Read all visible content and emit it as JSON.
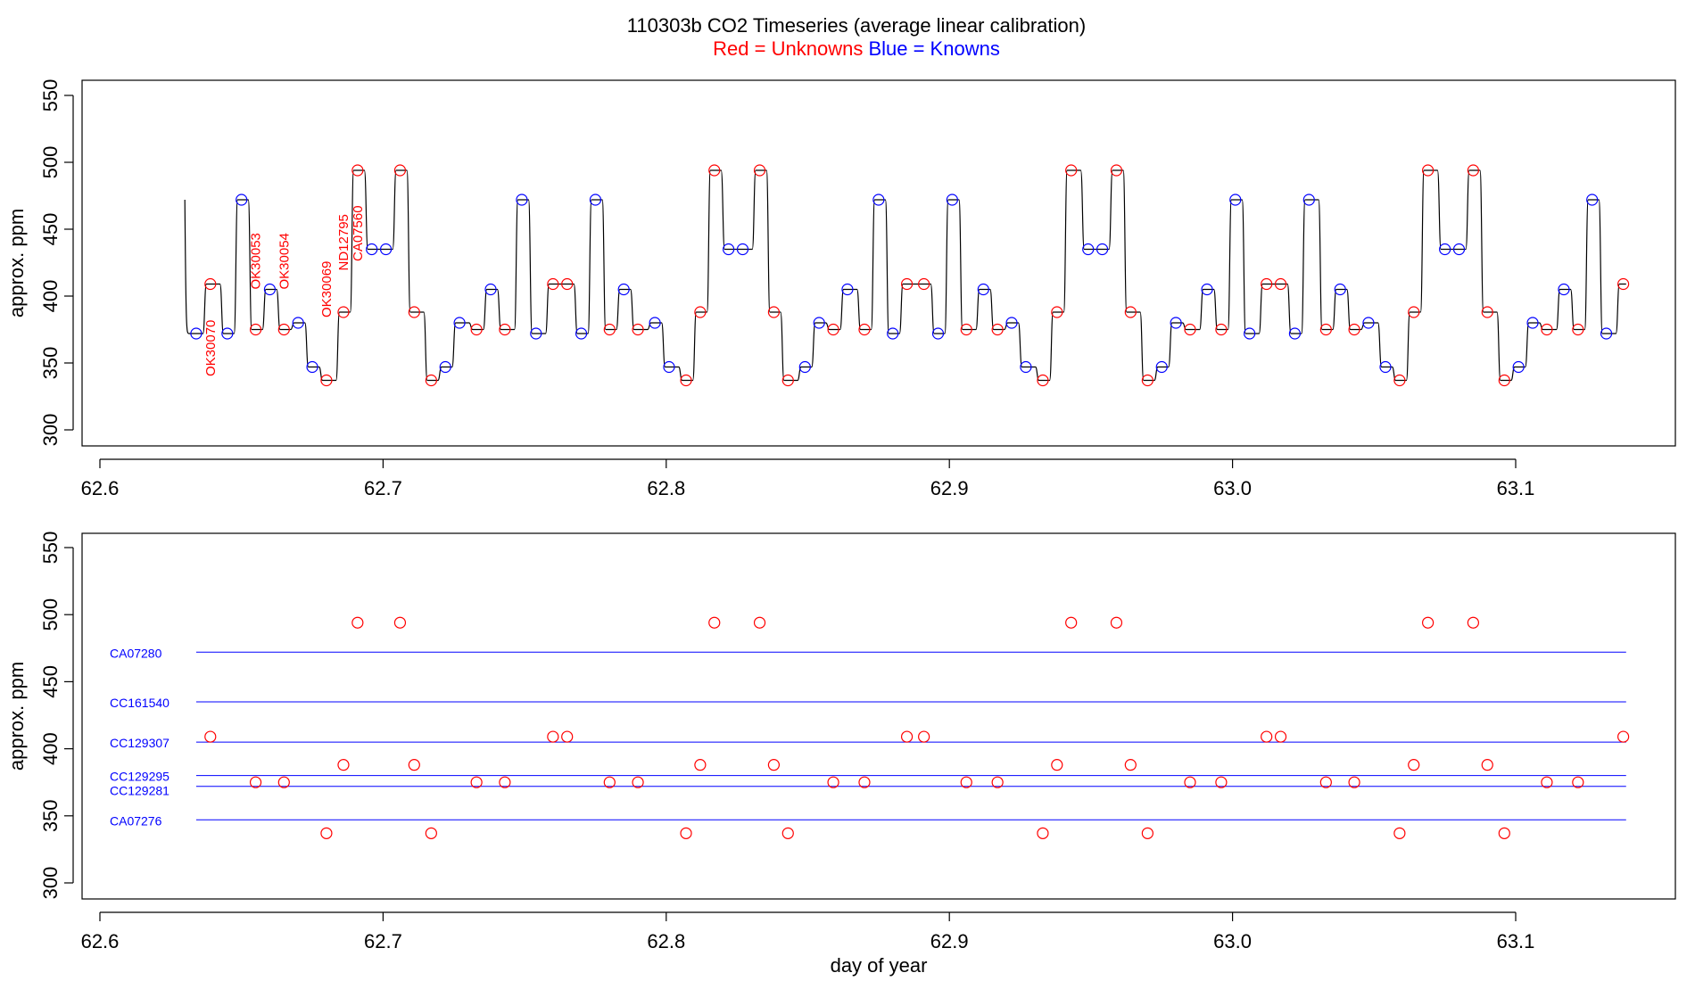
{
  "title": "110303b   CO2 Timeseries (average linear calibration)",
  "subtitle": {
    "red": "Red = Unknowns",
    "blue": "Blue = Knowns"
  },
  "colors": {
    "unknown": "#ff0000",
    "known": "#0000ff",
    "trace": "#000000",
    "ref_line": "#0000ff",
    "axis": "#000000"
  },
  "chart_data": [
    {
      "type": "line",
      "name": "top-panel",
      "xlim": [
        62.6,
        63.16
      ],
      "ylim": [
        300,
        550
      ],
      "xticks": [
        62.6,
        62.7,
        62.8,
        62.9,
        63.0,
        63.1
      ],
      "xtick_labels": [
        "62.6",
        "62.7",
        "62.8",
        "62.9",
        "63.0",
        "63.1"
      ],
      "yticks": [
        300,
        350,
        400,
        450,
        500,
        550
      ],
      "ytick_labels": [
        "300",
        "350",
        "400",
        "450",
        "500",
        "550"
      ],
      "xlabel": "",
      "ylabel": "approx. ppm",
      "trace_start": [
        62.63,
        472
      ],
      "trace_end_x": 63.139,
      "steps": [
        [
          62.634,
          372,
          "k"
        ],
        [
          62.639,
          409,
          "u"
        ],
        [
          62.645,
          372,
          "k"
        ],
        [
          62.65,
          472,
          "k"
        ],
        [
          62.655,
          375,
          "u"
        ],
        [
          62.66,
          405,
          "k"
        ],
        [
          62.665,
          375,
          "u"
        ],
        [
          62.67,
          380,
          "k"
        ],
        [
          62.675,
          347,
          "k"
        ],
        [
          62.68,
          337,
          "u"
        ],
        [
          62.686,
          388,
          "u"
        ],
        [
          62.691,
          494,
          "u"
        ],
        [
          62.696,
          435,
          "k"
        ],
        [
          62.701,
          435,
          "k"
        ],
        [
          62.706,
          494,
          "u"
        ],
        [
          62.711,
          388,
          "u"
        ],
        [
          62.717,
          337,
          "u"
        ],
        [
          62.722,
          347,
          "k"
        ],
        [
          62.727,
          380,
          "k"
        ],
        [
          62.733,
          375,
          "u"
        ],
        [
          62.738,
          405,
          "k"
        ],
        [
          62.743,
          375,
          "u"
        ],
        [
          62.749,
          472,
          "k"
        ],
        [
          62.754,
          372,
          "k"
        ],
        [
          62.76,
          409,
          "u"
        ],
        [
          62.765,
          409,
          "u"
        ],
        [
          62.77,
          372,
          "k"
        ],
        [
          62.775,
          472,
          "k"
        ],
        [
          62.78,
          375,
          "u"
        ],
        [
          62.785,
          405,
          "k"
        ],
        [
          62.79,
          375,
          "u"
        ],
        [
          62.796,
          380,
          "k"
        ],
        [
          62.801,
          347,
          "k"
        ],
        [
          62.807,
          337,
          "u"
        ],
        [
          62.812,
          388,
          "u"
        ],
        [
          62.817,
          494,
          "u"
        ],
        [
          62.822,
          435,
          "k"
        ],
        [
          62.827,
          435,
          "k"
        ],
        [
          62.833,
          494,
          "u"
        ],
        [
          62.838,
          388,
          "u"
        ],
        [
          62.843,
          337,
          "u"
        ],
        [
          62.849,
          347,
          "k"
        ],
        [
          62.854,
          380,
          "k"
        ],
        [
          62.859,
          375,
          "u"
        ],
        [
          62.864,
          405,
          "k"
        ],
        [
          62.87,
          375,
          "u"
        ],
        [
          62.875,
          472,
          "k"
        ],
        [
          62.88,
          372,
          "k"
        ],
        [
          62.885,
          409,
          "u"
        ],
        [
          62.891,
          409,
          "u"
        ],
        [
          62.896,
          372,
          "k"
        ],
        [
          62.901,
          472,
          "k"
        ],
        [
          62.906,
          375,
          "u"
        ],
        [
          62.912,
          405,
          "k"
        ],
        [
          62.917,
          375,
          "u"
        ],
        [
          62.922,
          380,
          "k"
        ],
        [
          62.927,
          347,
          "k"
        ],
        [
          62.933,
          337,
          "u"
        ],
        [
          62.938,
          388,
          "u"
        ],
        [
          62.943,
          494,
          "u"
        ],
        [
          62.949,
          435,
          "k"
        ],
        [
          62.954,
          435,
          "k"
        ],
        [
          62.959,
          494,
          "u"
        ],
        [
          62.964,
          388,
          "u"
        ],
        [
          62.97,
          337,
          "u"
        ],
        [
          62.975,
          347,
          "k"
        ],
        [
          62.98,
          380,
          "k"
        ],
        [
          62.985,
          375,
          "u"
        ],
        [
          62.991,
          405,
          "k"
        ],
        [
          62.996,
          375,
          "u"
        ],
        [
          63.001,
          472,
          "k"
        ],
        [
          63.006,
          372,
          "k"
        ],
        [
          63.012,
          409,
          "u"
        ],
        [
          63.017,
          409,
          "u"
        ],
        [
          63.022,
          372,
          "k"
        ],
        [
          63.027,
          472,
          "k"
        ],
        [
          63.033,
          375,
          "u"
        ],
        [
          63.038,
          405,
          "k"
        ],
        [
          63.043,
          375,
          "u"
        ],
        [
          63.048,
          380,
          "k"
        ],
        [
          63.054,
          347,
          "k"
        ],
        [
          63.059,
          337,
          "u"
        ],
        [
          63.064,
          388,
          "u"
        ],
        [
          63.069,
          494,
          "u"
        ],
        [
          63.075,
          435,
          "k"
        ],
        [
          63.08,
          435,
          "k"
        ],
        [
          63.085,
          494,
          "u"
        ],
        [
          63.09,
          388,
          "u"
        ],
        [
          63.096,
          337,
          "u"
        ],
        [
          63.101,
          347,
          "k"
        ],
        [
          63.106,
          380,
          "k"
        ],
        [
          63.111,
          375,
          "u"
        ],
        [
          63.117,
          405,
          "k"
        ],
        [
          63.122,
          375,
          "u"
        ],
        [
          63.127,
          472,
          "k"
        ],
        [
          63.132,
          372,
          "k"
        ],
        [
          63.138,
          409,
          "u"
        ]
      ],
      "sample_labels": [
        {
          "text": "OK30070",
          "x": 62.639,
          "y": 340
        },
        {
          "text": "OK30053",
          "x": 62.655,
          "y": 405
        },
        {
          "text": "OK30054",
          "x": 62.665,
          "y": 405
        },
        {
          "text": "OK30069",
          "x": 62.68,
          "y": 384
        },
        {
          "text": "ND12795",
          "x": 62.686,
          "y": 419
        },
        {
          "text": "CA07560",
          "x": 62.691,
          "y": 426
        }
      ]
    },
    {
      "type": "scatter",
      "name": "bottom-panel",
      "xlim": [
        62.6,
        63.16
      ],
      "ylim": [
        300,
        550
      ],
      "xticks": [
        62.6,
        62.7,
        62.8,
        62.9,
        63.0,
        63.1
      ],
      "xtick_labels": [
        "62.6",
        "62.7",
        "62.8",
        "62.9",
        "63.0",
        "63.1"
      ],
      "yticks": [
        300,
        350,
        400,
        450,
        500,
        550
      ],
      "ytick_labels": [
        "300",
        "350",
        "400",
        "450",
        "500",
        "550"
      ],
      "xlabel": "day of year",
      "ylabel": "approx. ppm",
      "reference_lines": [
        {
          "name": "CA07280",
          "value": 472
        },
        {
          "name": "CC161540",
          "value": 435
        },
        {
          "name": "CC129307",
          "value": 405
        },
        {
          "name": "CC129295",
          "value": 380
        },
        {
          "name": "CC129281",
          "value": 372
        },
        {
          "name": "CA07276",
          "value": 347
        }
      ],
      "reference_x_range": [
        62.634,
        63.139
      ],
      "unknowns": {
        "x": [
          62.639,
          62.655,
          62.665,
          62.68,
          62.686,
          62.691,
          62.706,
          62.711,
          62.717,
          62.733,
          62.743,
          62.76,
          62.765,
          62.78,
          62.79,
          62.807,
          62.812,
          62.817,
          62.833,
          62.838,
          62.843,
          62.859,
          62.87,
          62.885,
          62.891,
          62.906,
          62.917,
          62.933,
          62.938,
          62.943,
          62.959,
          62.964,
          62.97,
          62.985,
          62.996,
          63.012,
          63.017,
          63.033,
          63.043,
          63.059,
          63.064,
          63.069,
          63.085,
          63.09,
          63.096,
          63.111,
          63.122,
          63.138
        ],
        "y": [
          409,
          375,
          375,
          337,
          388,
          494,
          494,
          388,
          337,
          375,
          375,
          409,
          409,
          375,
          375,
          337,
          388,
          494,
          494,
          388,
          337,
          375,
          375,
          409,
          409,
          375,
          375,
          337,
          388,
          494,
          494,
          388,
          337,
          375,
          375,
          409,
          409,
          375,
          375,
          337,
          388,
          494,
          494,
          388,
          337,
          375,
          375,
          409
        ]
      }
    }
  ]
}
